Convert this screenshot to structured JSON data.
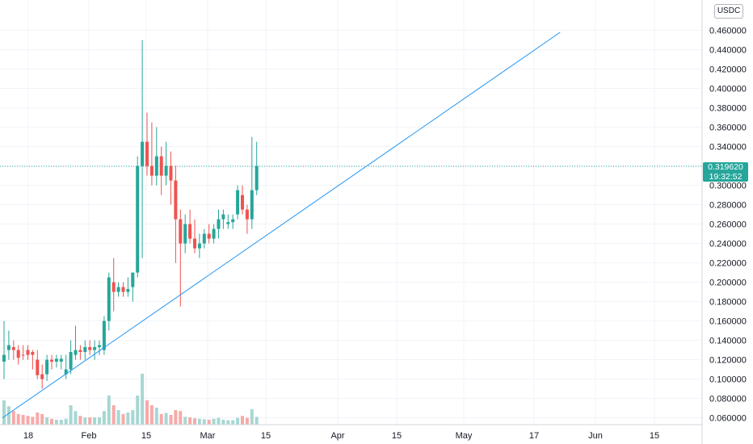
{
  "quote_currency": "USDC",
  "last_price": {
    "value": "0.319620",
    "countdown": "19:32:52"
  },
  "colors": {
    "up": "#26a69a",
    "down": "#ef5350",
    "trendline": "#2196f3",
    "vol_up": "#a7d7d3",
    "vol_down": "#f7aaa8"
  },
  "chart_data": {
    "type": "candlestick",
    "price_axis": {
      "ticks": [
        "0.060000",
        "0.080000",
        "0.100000",
        "0.120000",
        "0.140000",
        "0.160000",
        "0.180000",
        "0.200000",
        "0.220000",
        "0.240000",
        "0.260000",
        "0.280000",
        "0.300000",
        "0.320000",
        "0.340000",
        "0.360000",
        "0.380000",
        "0.400000",
        "0.420000",
        "0.440000",
        "0.460000"
      ],
      "range": [
        0.058,
        0.478
      ]
    },
    "time_axis": {
      "labels": [
        "18",
        "Feb",
        "15",
        "Mar",
        "15",
        "Apr",
        "15",
        "May",
        "17",
        "Jun",
        "15"
      ]
    },
    "candles": [
      [
        0.125,
        0.118,
        0.16,
        0.1,
        "up",
        50
      ],
      [
        0.135,
        0.13,
        0.15,
        0.12,
        "up",
        38
      ],
      [
        0.13,
        0.133,
        0.14,
        0.12,
        "down",
        28
      ],
      [
        0.13,
        0.122,
        0.135,
        0.115,
        "down",
        22
      ],
      [
        0.125,
        0.125,
        0.135,
        0.12,
        "down",
        20
      ],
      [
        0.13,
        0.125,
        0.135,
        0.12,
        "down",
        18
      ],
      [
        0.125,
        0.128,
        0.13,
        0.11,
        "down",
        16
      ],
      [
        0.12,
        0.104,
        0.13,
        0.1,
        "down",
        25
      ],
      [
        0.105,
        0.1,
        0.115,
        0.09,
        "down",
        22
      ],
      [
        0.105,
        0.12,
        0.125,
        0.098,
        "up",
        15
      ],
      [
        0.12,
        0.118,
        0.125,
        0.11,
        "down",
        12
      ],
      [
        0.118,
        0.121,
        0.125,
        0.112,
        "up",
        10
      ],
      [
        0.118,
        0.121,
        0.125,
        0.11,
        "up",
        10
      ],
      [
        0.105,
        0.11,
        0.125,
        0.1,
        "up",
        12
      ],
      [
        0.11,
        0.128,
        0.14,
        0.105,
        "up",
        40
      ],
      [
        0.125,
        0.13,
        0.155,
        0.12,
        "up",
        28
      ],
      [
        0.13,
        0.128,
        0.135,
        0.12,
        "down",
        18
      ],
      [
        0.128,
        0.133,
        0.14,
        0.12,
        "up",
        15
      ],
      [
        0.133,
        0.13,
        0.14,
        0.125,
        "down",
        15
      ],
      [
        0.13,
        0.133,
        0.14,
        0.12,
        "up",
        15
      ],
      [
        0.133,
        0.135,
        0.14,
        0.125,
        "up",
        15
      ],
      [
        0.13,
        0.16,
        0.165,
        0.125,
        "up",
        28
      ],
      [
        0.16,
        0.205,
        0.21,
        0.15,
        "up",
        60
      ],
      [
        0.2,
        0.19,
        0.225,
        0.17,
        "down",
        40
      ],
      [
        0.19,
        0.195,
        0.2,
        0.185,
        "up",
        30
      ],
      [
        0.195,
        0.19,
        0.2,
        0.185,
        "down",
        22
      ],
      [
        0.19,
        0.193,
        0.205,
        0.185,
        "up",
        25
      ],
      [
        0.195,
        0.21,
        0.21,
        0.18,
        "up",
        30
      ],
      [
        0.21,
        0.32,
        0.33,
        0.205,
        "up",
        60
      ],
      [
        0.32,
        0.345,
        0.45,
        0.225,
        "up",
        105
      ],
      [
        0.345,
        0.32,
        0.375,
        0.31,
        "down",
        50
      ],
      [
        0.32,
        0.31,
        0.365,
        0.3,
        "down",
        40
      ],
      [
        0.31,
        0.33,
        0.36,
        0.3,
        "up",
        35
      ],
      [
        0.33,
        0.31,
        0.34,
        0.29,
        "down",
        22
      ],
      [
        0.31,
        0.32,
        0.345,
        0.3,
        "up",
        24
      ],
      [
        0.32,
        0.305,
        0.335,
        0.28,
        "down",
        20
      ],
      [
        0.305,
        0.265,
        0.32,
        0.22,
        "down",
        30
      ],
      [
        0.265,
        0.24,
        0.275,
        0.175,
        "down",
        28
      ],
      [
        0.24,
        0.26,
        0.27,
        0.23,
        "up",
        16
      ],
      [
        0.26,
        0.245,
        0.275,
        0.24,
        "down",
        15
      ],
      [
        0.245,
        0.235,
        0.265,
        0.23,
        "down",
        13
      ],
      [
        0.235,
        0.24,
        0.25,
        0.225,
        "up",
        12
      ],
      [
        0.24,
        0.25,
        0.255,
        0.235,
        "up",
        11
      ],
      [
        0.25,
        0.245,
        0.26,
        0.24,
        "down",
        10
      ],
      [
        0.245,
        0.255,
        0.26,
        0.24,
        "up",
        12
      ],
      [
        0.255,
        0.265,
        0.275,
        0.245,
        "up",
        14
      ],
      [
        0.265,
        0.27,
        0.275,
        0.255,
        "up",
        10
      ],
      [
        0.26,
        0.262,
        0.27,
        0.255,
        "up",
        9
      ],
      [
        0.262,
        0.265,
        0.27,
        0.255,
        "up",
        9
      ],
      [
        0.27,
        0.295,
        0.3,
        0.265,
        "up",
        14
      ],
      [
        0.29,
        0.275,
        0.3,
        0.27,
        "down",
        18
      ],
      [
        0.275,
        0.265,
        0.28,
        0.25,
        "down",
        14
      ],
      [
        0.265,
        0.295,
        0.35,
        0.255,
        "up",
        32
      ],
      [
        0.295,
        0.32,
        0.345,
        0.29,
        "up",
        16
      ]
    ],
    "trendline": {
      "from": [
        0,
        0.06
      ],
      "to": [
        117,
        0.458
      ]
    },
    "grid": true
  }
}
